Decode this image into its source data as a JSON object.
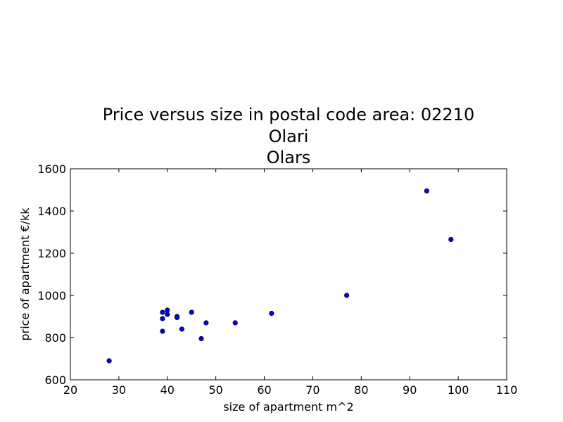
{
  "chart_data": {
    "type": "scatter",
    "title_lines": [
      "Price versus size in postal code area: 02210",
      "Olari",
      "Olars"
    ],
    "xlabel": "size of apartment m^2",
    "ylabel": "price of apartment €/kk",
    "xlim": [
      20,
      110
    ],
    "ylim": [
      600,
      1600
    ],
    "xticks": [
      20,
      30,
      40,
      50,
      60,
      70,
      80,
      90,
      100,
      110
    ],
    "yticks": [
      600,
      800,
      1000,
      1200,
      1400,
      1600
    ],
    "grid": false,
    "marker_color": "#0000ff",
    "points": [
      {
        "x": 28,
        "y": 690
      },
      {
        "x": 39,
        "y": 920
      },
      {
        "x": 39,
        "y": 890
      },
      {
        "x": 39,
        "y": 830
      },
      {
        "x": 40,
        "y": 930
      },
      {
        "x": 40,
        "y": 910
      },
      {
        "x": 42,
        "y": 900
      },
      {
        "x": 42,
        "y": 895
      },
      {
        "x": 43,
        "y": 840
      },
      {
        "x": 45,
        "y": 920
      },
      {
        "x": 47,
        "y": 795
      },
      {
        "x": 48,
        "y": 870
      },
      {
        "x": 54,
        "y": 870
      },
      {
        "x": 61.5,
        "y": 915
      },
      {
        "x": 77,
        "y": 1000
      },
      {
        "x": 93.5,
        "y": 1495
      },
      {
        "x": 98.5,
        "y": 1265
      }
    ]
  }
}
